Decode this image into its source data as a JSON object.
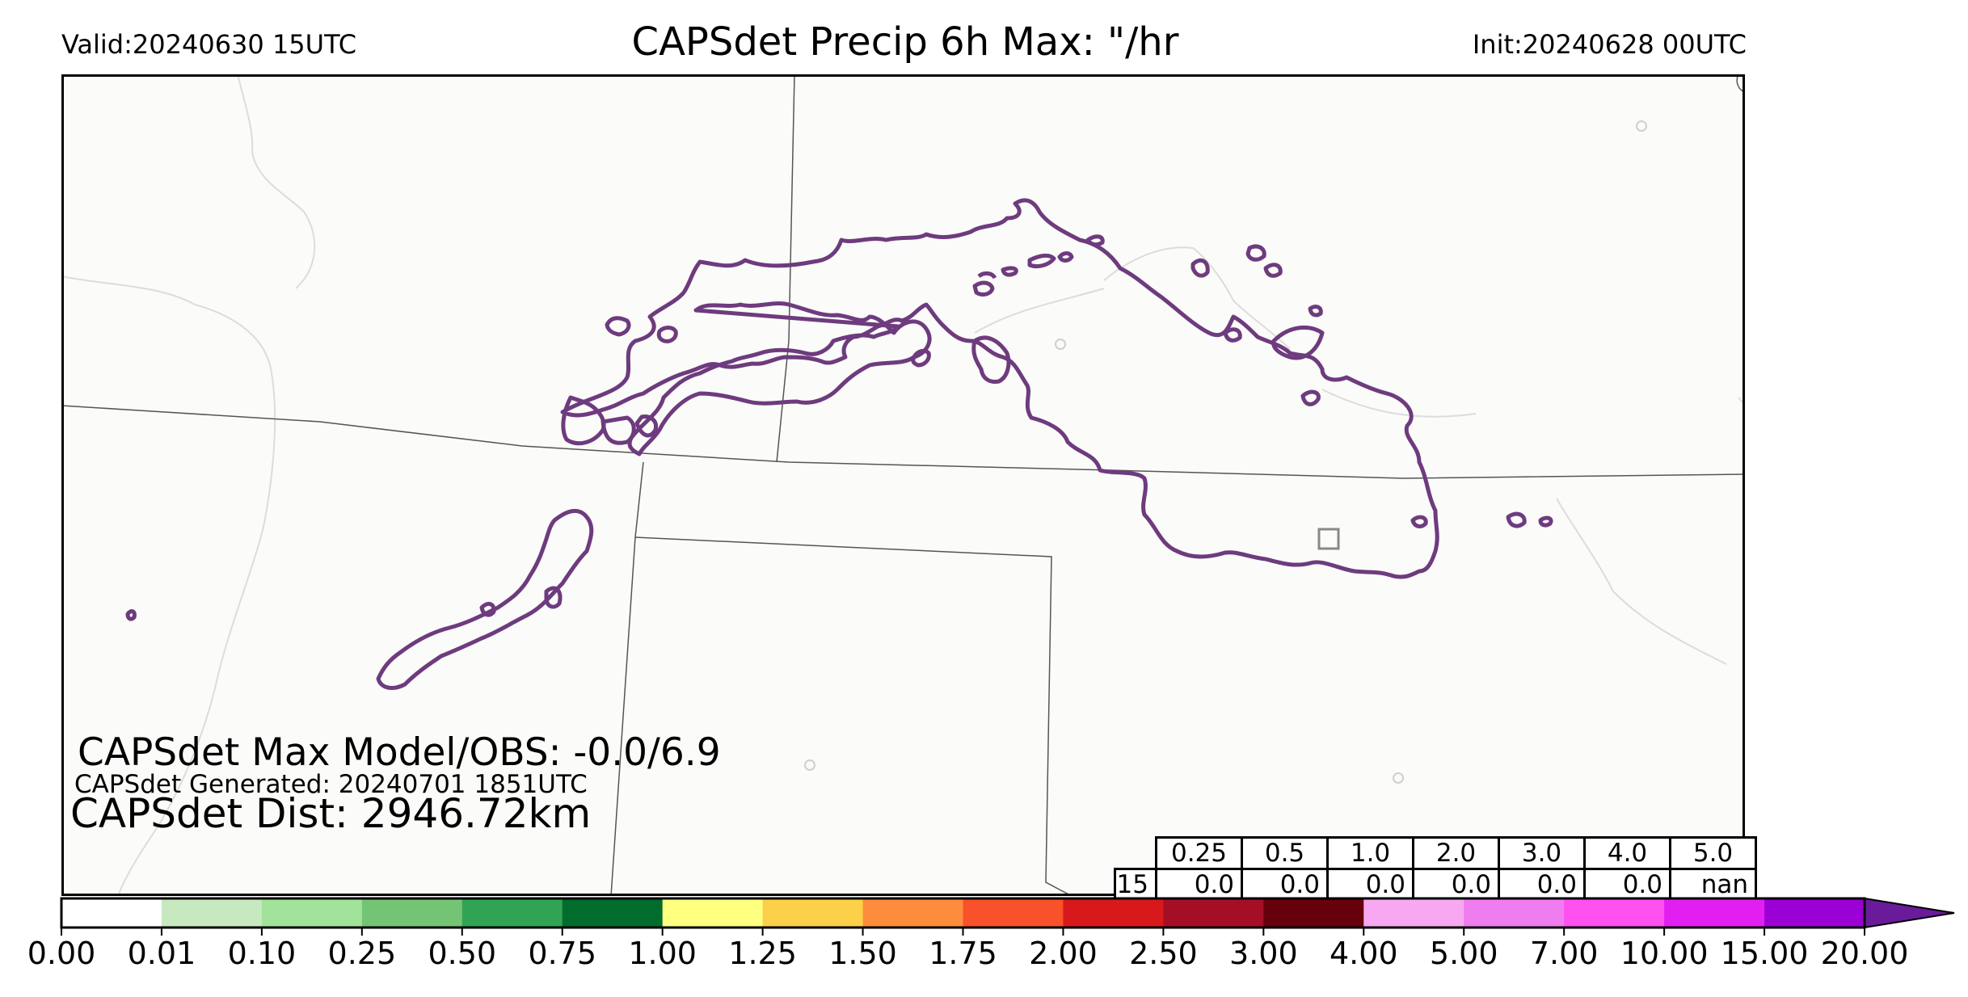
{
  "header": {
    "valid": "Valid:20240630 15UTC",
    "title": "CAPSdet Precip 6h Max: \"/hr",
    "init": "Init:20240628 00UTC"
  },
  "stats": {
    "max_line": "CAPSdet Max Model/OBS: -0.0/6.9",
    "generated_line": "CAPSdet Generated: 20240701 1851UTC",
    "dist_line": "CAPSdet Dist: 2946.72km"
  },
  "threshold_table": {
    "thresholds": [
      "0.25",
      "0.5",
      "1.0",
      "2.0",
      "3.0",
      "4.0",
      "5.0"
    ],
    "hour": "15",
    "values": [
      "0.0",
      "0.0",
      "0.0",
      "0.0",
      "0.0",
      "0.0",
      "nan"
    ]
  },
  "colorbar": {
    "ticks": [
      "0.00",
      "0.01",
      "0.10",
      "0.25",
      "0.50",
      "0.75",
      "1.00",
      "1.25",
      "1.50",
      "1.75",
      "2.00",
      "2.50",
      "3.00",
      "4.00",
      "5.00",
      "7.00",
      "10.00",
      "15.00",
      "20.00"
    ],
    "colors": [
      "#ffffff",
      "#c7e9c0",
      "#a1e39b",
      "#74c476",
      "#31a354",
      "#006d2c",
      "#ffff80",
      "#fdd04a",
      "#fd8d3c",
      "#f9512a",
      "#d7191c",
      "#a50f25",
      "#67000d",
      "#f7a8f0",
      "#f07df0",
      "#ff50f0",
      "#e21ff0",
      "#9b00d4"
    ],
    "extend_color": "#6a1b9a"
  },
  "map": {
    "contour_color": "#6e3b7e",
    "background": "#fbfbf9"
  }
}
